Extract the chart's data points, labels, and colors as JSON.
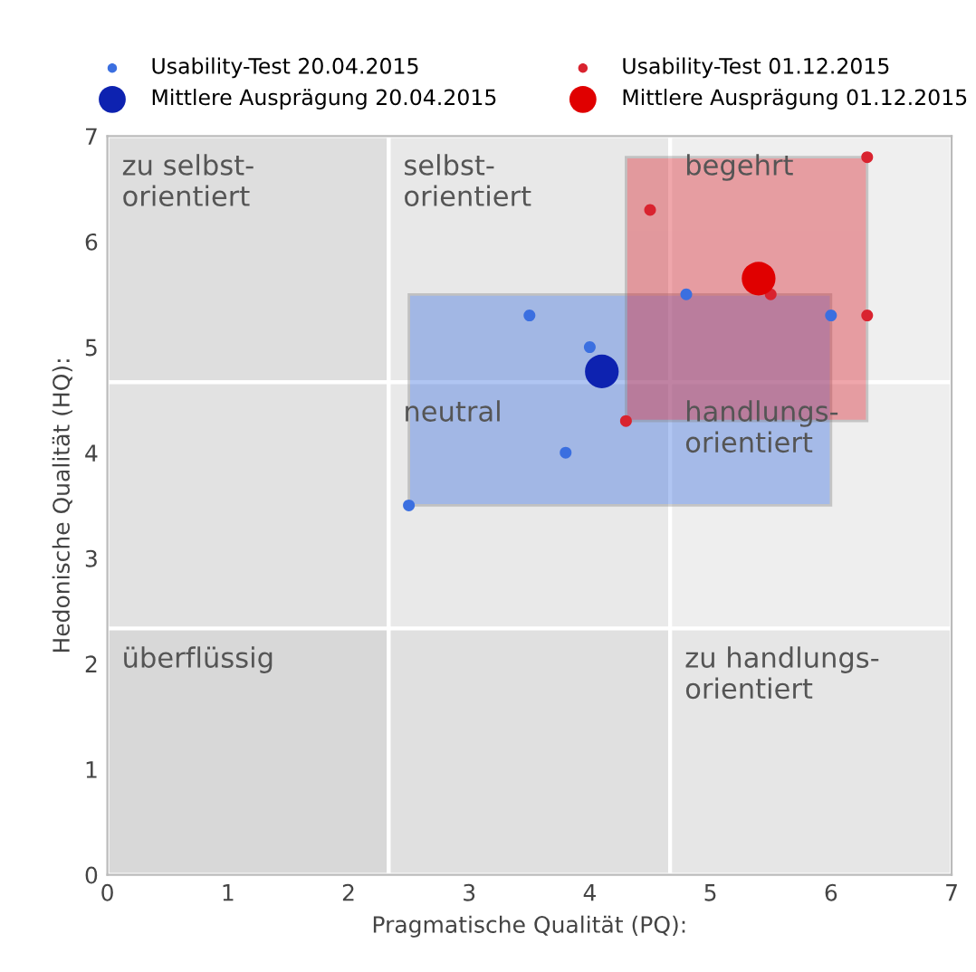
{
  "chart_data": {
    "type": "scatter",
    "xlabel": "Pragmatische Qualität (PQ):",
    "ylabel": "Hedonische Qualität (HQ):",
    "xlim": [
      0,
      7
    ],
    "ylim": [
      0,
      7
    ],
    "xticks": [
      0,
      1,
      2,
      3,
      4,
      5,
      6,
      7
    ],
    "yticks": [
      0,
      1,
      2,
      3,
      4,
      5,
      6,
      7
    ],
    "grid": false,
    "legend": "top",
    "marker": "circle",
    "series": [
      {
        "name": "Usability-Test 20.04.2015",
        "color": "#3b6fe0",
        "x": [
          3.5,
          4.0,
          3.8,
          2.5,
          4.8,
          6.0
        ],
        "values": [
          5.3,
          5.0,
          4.0,
          3.5,
          5.5,
          5.3
        ]
      },
      {
        "name": "Usability-Test 01.12.2015",
        "color": "#d9232f",
        "x": [
          4.5,
          6.3,
          6.3,
          5.5,
          4.3
        ],
        "values": [
          6.3,
          6.8,
          5.3,
          5.5,
          4.3
        ]
      },
      {
        "name": "Mittlere Ausprägung 20.04.2015",
        "color": "#0d22b0",
        "x": [
          4.1
        ],
        "values": [
          4.77
        ]
      },
      {
        "name": "Mittlere Ausprägung 01.12.2015",
        "color": "#e00000",
        "x": [
          5.4
        ],
        "values": [
          5.65
        ]
      }
    ],
    "annotations": [
      "zu selbst-\norientiert",
      "selbst-\norientiert",
      "begehrt",
      "neutral",
      "handlungs-\norientiert",
      "überflüssig",
      "zu handlungs-\norientiert"
    ]
  }
}
